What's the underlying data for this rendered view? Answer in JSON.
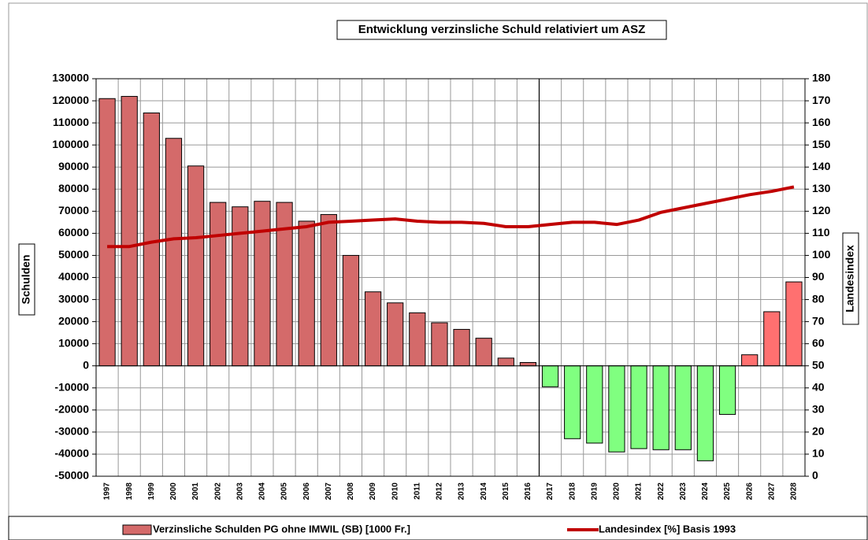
{
  "chart_data": {
    "type": "bar_line",
    "title": "Entwicklung verzinsliche Schuld relativiert um ASZ",
    "y_label": "Schulden",
    "y2_label": "Landesindex",
    "categories": [
      "1997",
      "1998",
      "1999",
      "2000",
      "2001",
      "2002",
      "2003",
      "2004",
      "2005",
      "2006",
      "2007",
      "2008",
      "2009",
      "2010",
      "2011",
      "2012",
      "2013",
      "2014",
      "2015",
      "2016",
      "2017",
      "2018",
      "2019",
      "2020",
      "2021",
      "2022",
      "2023",
      "2024",
      "2025",
      "2026",
      "2027",
      "2028"
    ],
    "series": [
      {
        "name": "Verzinsliche Schulden PG ohne IMWIL (SB) [1000 Fr.]",
        "type": "bar",
        "color": "#d46a6a",
        "bar_colors": [
          "#d46a6a",
          "#d46a6a",
          "#d46a6a",
          "#d46a6a",
          "#d46a6a",
          "#d46a6a",
          "#d46a6a",
          "#d46a6a",
          "#d46a6a",
          "#d46a6a",
          "#d46a6a",
          "#d46a6a",
          "#d46a6a",
          "#d46a6a",
          "#d46a6a",
          "#d46a6a",
          "#d46a6a",
          "#d46a6a",
          "#d46a6a",
          "#d46a6a",
          "#80ff80",
          "#80ff80",
          "#80ff80",
          "#80ff80",
          "#80ff80",
          "#80ff80",
          "#80ff80",
          "#80ff80",
          "#80ff80",
          "#ff7070",
          "#ff7070",
          "#ff7070"
        ],
        "values": [
          121000,
          122000,
          114500,
          103000,
          90500,
          74000,
          72000,
          74500,
          74000,
          65500,
          68500,
          50000,
          33500,
          28500,
          24000,
          19500,
          16500,
          12500,
          3500,
          1500,
          -9500,
          -33000,
          -35000,
          -39000,
          -37500,
          -38000,
          -38000,
          -43000,
          -22000,
          5000,
          24500,
          38000
        ]
      },
      {
        "name": "Landesindex [%] Basis 1993",
        "type": "line",
        "axis": "y2",
        "color": "#c00000",
        "values": [
          104,
          104,
          106,
          107.5,
          108,
          109,
          110,
          111,
          112,
          113,
          115,
          115.5,
          116,
          116.5,
          115.5,
          115,
          115,
          114.5,
          113,
          113,
          114,
          115,
          115,
          114,
          116,
          119.5,
          121.5,
          123.5,
          125.5,
          127.5,
          129,
          131
        ]
      }
    ],
    "ylim": [
      -50000,
      130000
    ],
    "yticks": [
      -50000,
      -40000,
      -30000,
      -20000,
      -10000,
      0,
      10000,
      20000,
      30000,
      40000,
      50000,
      60000,
      70000,
      80000,
      90000,
      100000,
      110000,
      120000,
      130000
    ],
    "y2lim": [
      0,
      180
    ],
    "y2ticks": [
      0,
      10,
      20,
      30,
      40,
      50,
      60,
      70,
      80,
      90,
      100,
      110,
      120,
      130,
      140,
      150,
      160,
      170,
      180
    ],
    "grid": true
  }
}
